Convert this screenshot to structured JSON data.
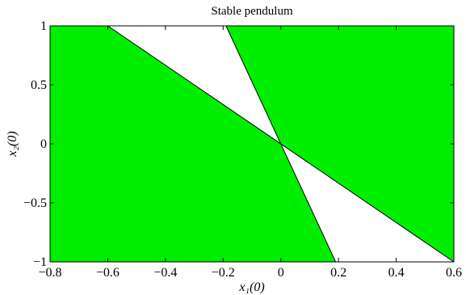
{
  "chart_data": {
    "type": "area",
    "title": "Stable pendulum",
    "xlabel": "x₁(0)",
    "ylabel": "x₂(0)",
    "xlim": [
      -0.8,
      0.6
    ],
    "ylim": [
      -1,
      1
    ],
    "x_ticks": [
      -0.8,
      -0.6,
      -0.4,
      -0.2,
      0,
      0.2,
      0.4,
      0.6
    ],
    "x_tick_labels": [
      "−0.8",
      "−0.6",
      "−0.4",
      "−0.2",
      "0",
      "0.2",
      "0.4",
      "0.6"
    ],
    "y_ticks": [
      -1,
      -0.5,
      0,
      0.5,
      1
    ],
    "y_tick_labels": [
      "−1",
      "−0.5",
      "0",
      "0.5",
      "1"
    ],
    "grid": false,
    "fill_color": "#00ee00",
    "regions": [
      {
        "name": "left",
        "x": [
          -0.8,
          -0.6,
          0,
          0.19,
          -0.8
        ],
        "y": [
          1,
          1,
          0,
          -1,
          -1
        ]
      },
      {
        "name": "right",
        "x": [
          -0.19,
          0.6,
          0.6,
          0
        ],
        "y": [
          1,
          1,
          -1,
          0
        ]
      }
    ],
    "boundary_lines": [
      {
        "x": [
          -0.6,
          0.6
        ],
        "y": [
          1,
          -1
        ]
      },
      {
        "x": [
          -0.19,
          0.19
        ],
        "y": [
          1,
          -1
        ]
      }
    ]
  }
}
